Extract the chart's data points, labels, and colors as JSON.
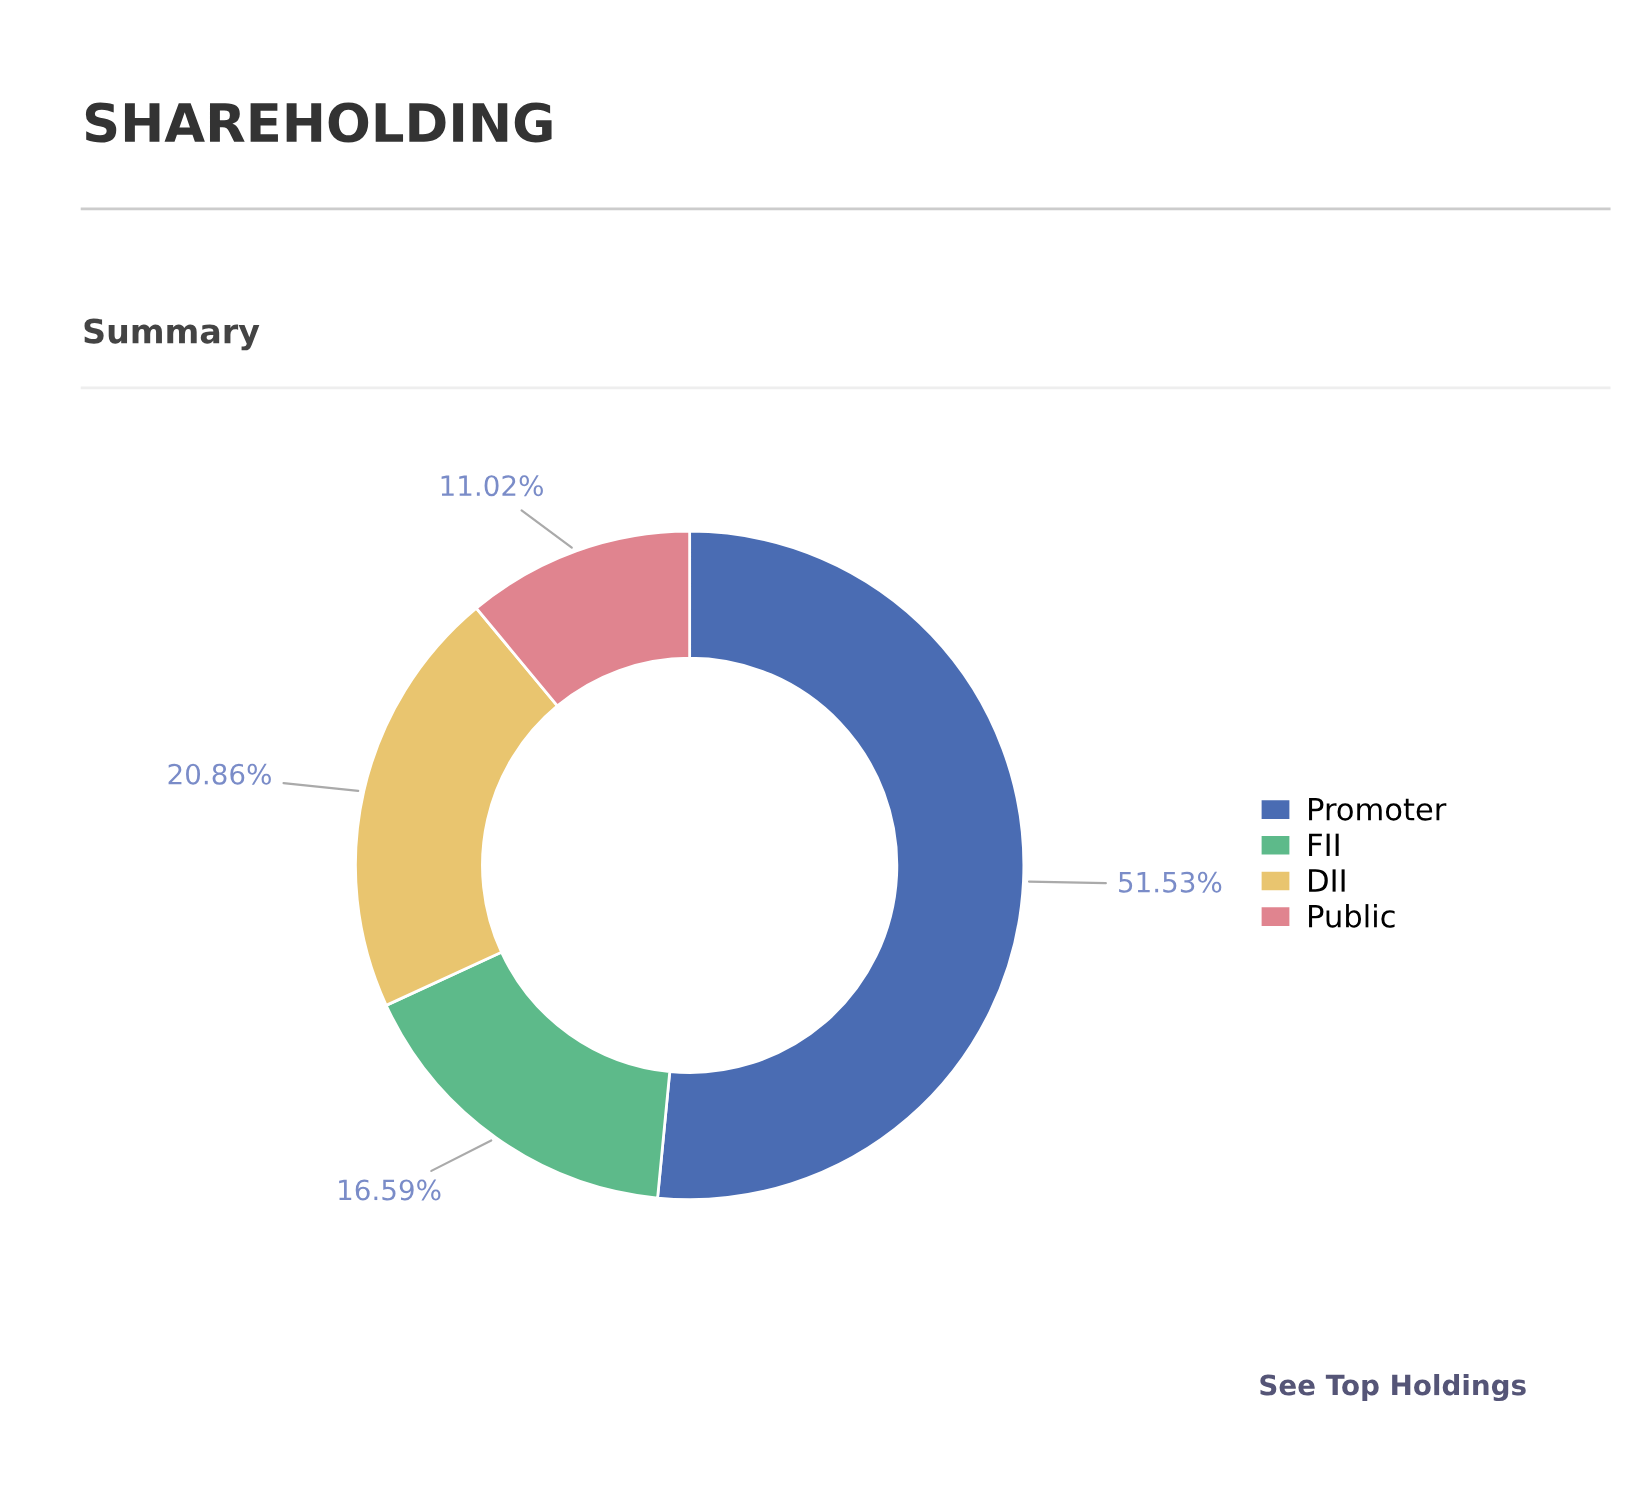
{
  "chart_data": {
    "type": "donut",
    "title": "SHAREHOLDING",
    "subtitle": "Summary",
    "categories": [
      "Promoter",
      "FII",
      "DII",
      "Public"
    ],
    "values": [
      51.53,
      16.59,
      20.86,
      11.02
    ],
    "colors": [
      "#4a6cb3",
      "#5dba8a",
      "#e9c56f",
      "#e0848f"
    ],
    "value_labels": [
      "51.53%",
      "16.59%",
      "20.86%",
      "11.02%"
    ],
    "legend": "right",
    "annotations": [
      "See Top Holdings"
    ]
  }
}
